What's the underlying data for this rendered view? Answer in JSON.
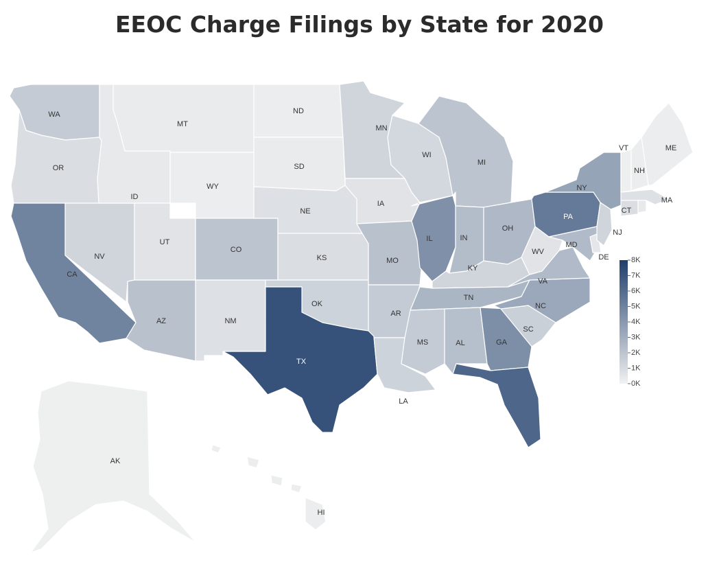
{
  "title": "EEOC Charge Filings by State for 2020",
  "color_scale": {
    "min_color": "#f1f1f1",
    "max_color": "#203f6c",
    "min": 0,
    "max": 8000
  },
  "legend": {
    "ticks": [
      "8K",
      "7K",
      "6K",
      "5K",
      "4K",
      "3K",
      "2K",
      "1K",
      "0K"
    ],
    "placement": "right"
  },
  "chart_data": {
    "type": "choropleth",
    "title": "EEOC Charge Filings by State for 2020",
    "range": [
      0,
      8000
    ],
    "states": [
      {
        "code": "WA",
        "value": 1300
      },
      {
        "code": "OR",
        "value": 600
      },
      {
        "code": "CA",
        "value": 4500
      },
      {
        "code": "NV",
        "value": 900
      },
      {
        "code": "ID",
        "value": 200
      },
      {
        "code": "MT",
        "value": 150
      },
      {
        "code": "WY",
        "value": 100
      },
      {
        "code": "UT",
        "value": 400
      },
      {
        "code": "AZ",
        "value": 1700
      },
      {
        "code": "CO",
        "value": 1600
      },
      {
        "code": "NM",
        "value": 500
      },
      {
        "code": "ND",
        "value": 100
      },
      {
        "code": "SD",
        "value": 150
      },
      {
        "code": "NE",
        "value": 500
      },
      {
        "code": "KS",
        "value": 600
      },
      {
        "code": "OK",
        "value": 1000
      },
      {
        "code": "TX",
        "value": 7000
      },
      {
        "code": "MN",
        "value": 900
      },
      {
        "code": "IA",
        "value": 400
      },
      {
        "code": "MO",
        "value": 1700
      },
      {
        "code": "AR",
        "value": 1300
      },
      {
        "code": "LA",
        "value": 1000
      },
      {
        "code": "WI",
        "value": 800
      },
      {
        "code": "IL",
        "value": 3900
      },
      {
        "code": "MI",
        "value": 1600
      },
      {
        "code": "IN",
        "value": 1900
      },
      {
        "code": "OH",
        "value": 2100
      },
      {
        "code": "KY",
        "value": 900
      },
      {
        "code": "TN",
        "value": 2200
      },
      {
        "code": "MS",
        "value": 1300
      },
      {
        "code": "AL",
        "value": 1800
      },
      {
        "code": "GA",
        "value": 4000
      },
      {
        "code": "FL",
        "value": 6000
      },
      {
        "code": "SC",
        "value": 1100
      },
      {
        "code": "NC",
        "value": 2800
      },
      {
        "code": "VA",
        "value": 2000
      },
      {
        "code": "WV",
        "value": 400
      },
      {
        "code": "PA",
        "value": 5000
      },
      {
        "code": "NY",
        "value": 3000
      },
      {
        "code": "MD",
        "value": 2000
      },
      {
        "code": "DE",
        "value": 300
      },
      {
        "code": "NJ",
        "value": 900
      },
      {
        "code": "CT",
        "value": 600
      },
      {
        "code": "MA",
        "value": 500
      },
      {
        "code": "VT",
        "value": 50
      },
      {
        "code": "NH",
        "value": 100
      },
      {
        "code": "ME",
        "value": 100
      },
      {
        "code": "RI",
        "value": 200
      },
      {
        "code": "AK",
        "value": 50
      },
      {
        "code": "HI",
        "value": 100
      }
    ]
  }
}
